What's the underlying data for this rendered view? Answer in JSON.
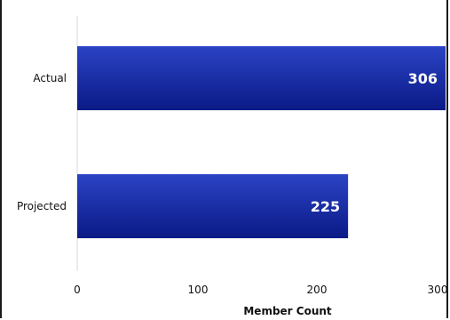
{
  "chart_data": {
    "type": "bar",
    "orientation": "horizontal",
    "categories": [
      "Actual",
      "Projected"
    ],
    "values": [
      306,
      225
    ],
    "value_labels": [
      "306",
      "225"
    ],
    "xlabel": "Member Count",
    "ylabel": "",
    "title": "",
    "xlim": [
      0,
      306
    ],
    "xticks": [
      0,
      100,
      200,
      300
    ],
    "xtick_labels": [
      "0",
      "100",
      "200",
      "300"
    ],
    "grid": false,
    "legend": "none",
    "bar_color_light": "#2b43c4",
    "bar_color_dark": "#0a1a86"
  }
}
